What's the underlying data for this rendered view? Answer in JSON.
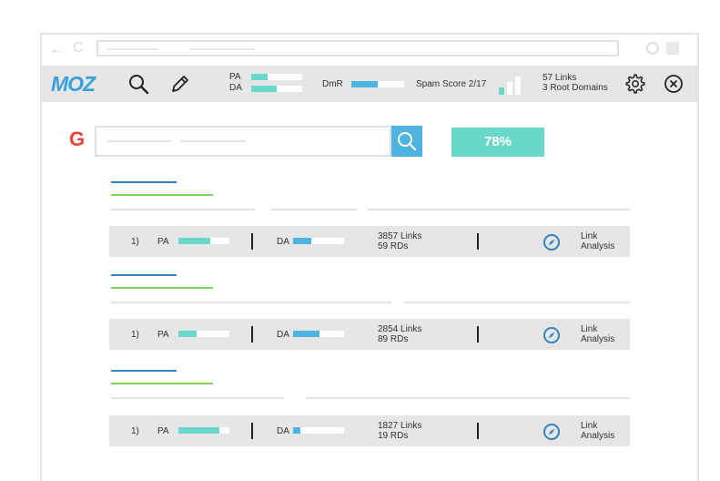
{
  "browser": {
    "back_icon": "arrow-left-icon",
    "reload_icon": "reload-icon",
    "back_glyph": "←",
    "reload_glyph": "C"
  },
  "mozbar": {
    "logo": "MOZ",
    "pa_label": "PA",
    "da_label": "DA",
    "pa_level": 0.32,
    "da_level": 0.5,
    "dmr_label": "DmR",
    "dmr_level": 0.5,
    "spam_label": "Spam Score 2/17",
    "spam_filled_bars": 1,
    "spam_total_bars": 3,
    "links_line1": "57 Links",
    "links_line2": "3 Root Domains",
    "icons": [
      "search-icon",
      "pencil-icon",
      "gear-icon",
      "close-circle-icon"
    ]
  },
  "search": {
    "logo": "G",
    "button_icon": "search-icon",
    "score": "78%"
  },
  "results": [
    {
      "rank": "1)",
      "pa_label": "PA",
      "pa_level": 0.62,
      "da_label": "DA",
      "da_level": 0.35,
      "links": "3857 Links",
      "rds": "59 RDs",
      "analysis_line1": "Link",
      "analysis_line2": "Analysis"
    },
    {
      "rank": "1)",
      "pa_label": "PA",
      "pa_level": 0.35,
      "da_label": "DA",
      "da_level": 0.52,
      "links": "2854 Links",
      "rds": "89 RDs",
      "analysis_line1": "Link",
      "analysis_line2": "Analysis"
    },
    {
      "rank": "1)",
      "pa_label": "PA",
      "pa_level": 0.8,
      "da_label": "DA",
      "da_level": 0.15,
      "links": "1827 Links",
      "rds": "19 RDs",
      "analysis_line1": "Link",
      "analysis_line2": "Analysis"
    }
  ],
  "colors": {
    "teal": "#6ad8c8",
    "blue": "#4fb3e1",
    "dark_blue": "#2f86c0",
    "green": "#7fd15a",
    "toolbar_grey": "#e6e6e6"
  }
}
